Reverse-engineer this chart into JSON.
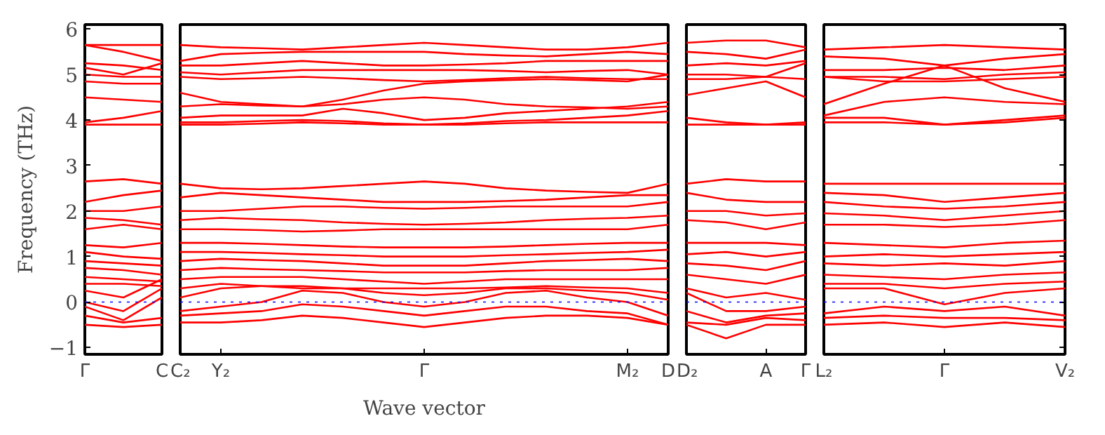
{
  "chart_data": [
    {
      "type": "line",
      "ylabel": "Frequency (THz)",
      "categories": [
        "Γ",
        null,
        "C"
      ],
      "ylim": [
        -1.15,
        6.1
      ],
      "yticks": [
        -1,
        0,
        1,
        2,
        3,
        4,
        5,
        6
      ],
      "ref_lines": [
        {
          "axis": "y",
          "value": 0,
          "color": "#0000ff",
          "line_style": "dotted"
        }
      ],
      "series": [
        {
          "color": "#ff0000",
          "values": [
            5.65,
            5.65,
            5.65
          ]
        },
        {
          "color": "#ff0000",
          "values": [
            5.65,
            5.5,
            5.3
          ]
        },
        {
          "color": "#ff0000",
          "values": [
            5.25,
            5.2,
            5.1
          ]
        },
        {
          "color": "#ff0000",
          "values": [
            5.15,
            5.0,
            5.25
          ]
        },
        {
          "color": "#ff0000",
          "values": [
            5.0,
            4.95,
            4.95
          ]
        },
        {
          "color": "#ff0000",
          "values": [
            4.85,
            4.8,
            4.8
          ]
        },
        {
          "color": "#ff0000",
          "values": [
            4.5,
            4.45,
            4.4
          ]
        },
        {
          "color": "#ff0000",
          "values": [
            3.95,
            4.05,
            4.2
          ]
        },
        {
          "color": "#ff0000",
          "values": [
            3.9,
            3.9,
            3.9
          ]
        },
        {
          "color": "#ff0000",
          "values": [
            2.65,
            2.7,
            2.6
          ]
        },
        {
          "color": "#ff0000",
          "values": [
            2.2,
            2.35,
            2.45
          ]
        },
        {
          "color": "#ff0000",
          "values": [
            2.0,
            2.0,
            2.1
          ]
        },
        {
          "color": "#ff0000",
          "values": [
            1.85,
            1.8,
            1.7
          ]
        },
        {
          "color": "#ff0000",
          "values": [
            1.6,
            1.7,
            1.6
          ]
        },
        {
          "color": "#ff0000",
          "values": [
            1.25,
            1.2,
            1.3
          ]
        },
        {
          "color": "#ff0000",
          "values": [
            1.1,
            1.0,
            0.95
          ]
        },
        {
          "color": "#ff0000",
          "values": [
            0.9,
            0.85,
            0.8
          ]
        },
        {
          "color": "#ff0000",
          "values": [
            0.75,
            0.7,
            0.6
          ]
        },
        {
          "color": "#ff0000",
          "values": [
            0.55,
            0.5,
            0.45
          ]
        },
        {
          "color": "#ff0000",
          "values": [
            0.4,
            0.4,
            0.35
          ]
        },
        {
          "color": "#ff0000",
          "values": [
            0.25,
            0.1,
            0.5
          ]
        },
        {
          "color": "#ff0000",
          "values": [
            0,
            -0.2,
            0.3
          ]
        },
        {
          "color": "#ff0000",
          "values": [
            -0.1,
            -0.4,
            0.1
          ]
        },
        {
          "color": "#ff0000",
          "values": [
            -0.3,
            -0.45,
            -0.35
          ]
        },
        {
          "color": "#ff0000",
          "values": [
            -0.5,
            -0.55,
            -0.5
          ]
        }
      ]
    },
    {
      "type": "line",
      "xlabel": "Wave vector",
      "tick_labels": "x",
      "categories": [
        "C₂",
        "Y₂",
        null,
        null,
        null,
        null,
        "Γ",
        null,
        null,
        null,
        null,
        "M₂",
        "D"
      ],
      "ylim": [
        -1.15,
        6.1
      ],
      "ref_lines": [
        {
          "axis": "y",
          "value": 0,
          "color": "#0000ff",
          "line_style": "dotted"
        }
      ],
      "series": [
        {
          "color": "#ff0000",
          "values": [
            5.65,
            5.6,
            5.58,
            5.55,
            5.6,
            5.65,
            5.7,
            5.65,
            5.6,
            5.55,
            5.55,
            5.6,
            5.7
          ]
        },
        {
          "color": "#ff0000",
          "values": [
            5.3,
            5.45,
            5.48,
            5.5,
            5.5,
            5.5,
            5.5,
            5.45,
            5.42,
            5.4,
            5.45,
            5.5,
            5.45
          ]
        },
        {
          "color": "#ff0000",
          "values": [
            5.2,
            5.2,
            5.25,
            5.3,
            5.25,
            5.2,
            5.2,
            5.22,
            5.25,
            5.3,
            5.3,
            5.3,
            5.3
          ]
        },
        {
          "color": "#ff0000",
          "values": [
            5.05,
            5.0,
            5.05,
            5.1,
            5.1,
            5.1,
            5.1,
            5.1,
            5.08,
            5.05,
            5.08,
            5.1,
            5.0
          ]
        },
        {
          "color": "#ff0000",
          "values": [
            4.95,
            4.9,
            4.92,
            4.95,
            4.92,
            4.88,
            4.85,
            4.88,
            4.92,
            4.95,
            4.92,
            4.9,
            4.9
          ]
        },
        {
          "color": "#ff0000",
          "values": [
            4.6,
            4.4,
            4.35,
            4.3,
            4.45,
            4.65,
            4.8,
            4.85,
            4.88,
            4.9,
            4.88,
            4.85,
            5.0
          ]
        },
        {
          "color": "#ff0000",
          "values": [
            4.3,
            4.35,
            4.32,
            4.3,
            4.35,
            4.45,
            4.5,
            4.45,
            4.35,
            4.3,
            4.28,
            4.25,
            4.3
          ]
        },
        {
          "color": "#ff0000",
          "values": [
            4.05,
            4.1,
            4.1,
            4.1,
            4.25,
            4.15,
            4.0,
            4.05,
            4.15,
            4.2,
            4.25,
            4.3,
            4.4
          ]
        },
        {
          "color": "#ff0000",
          "values": [
            3.95,
            3.95,
            3.98,
            4.0,
            3.98,
            3.93,
            3.9,
            3.93,
            3.98,
            4.0,
            4.05,
            4.1,
            4.2
          ]
        },
        {
          "color": "#ff0000",
          "values": [
            3.9,
            3.9,
            3.92,
            3.95,
            3.93,
            3.9,
            3.9,
            3.9,
            3.93,
            3.95,
            3.95,
            3.95,
            3.95
          ]
        },
        {
          "color": "#ff0000",
          "values": [
            2.6,
            2.5,
            2.48,
            2.5,
            2.55,
            2.6,
            2.65,
            2.6,
            2.5,
            2.45,
            2.42,
            2.4,
            2.6
          ]
        },
        {
          "color": "#ff0000",
          "values": [
            2.3,
            2.4,
            2.35,
            2.3,
            2.25,
            2.2,
            2.2,
            2.2,
            2.22,
            2.25,
            2.3,
            2.35,
            2.35
          ]
        },
        {
          "color": "#ff0000",
          "values": [
            2.0,
            2.0,
            2.05,
            2.1,
            2.1,
            2.07,
            2.05,
            2.07,
            2.1,
            2.1,
            2.1,
            2.1,
            2.2
          ]
        },
        {
          "color": "#ff0000",
          "values": [
            1.8,
            1.85,
            1.82,
            1.8,
            1.75,
            1.72,
            1.7,
            1.72,
            1.75,
            1.8,
            1.83,
            1.85,
            1.9
          ]
        },
        {
          "color": "#ff0000",
          "values": [
            1.6,
            1.6,
            1.58,
            1.55,
            1.57,
            1.6,
            1.6,
            1.6,
            1.6,
            1.6,
            1.6,
            1.6,
            1.7
          ]
        },
        {
          "color": "#ff0000",
          "values": [
            1.3,
            1.3,
            1.28,
            1.25,
            1.22,
            1.2,
            1.2,
            1.2,
            1.22,
            1.25,
            1.28,
            1.3,
            1.3
          ]
        },
        {
          "color": "#ff0000",
          "values": [
            1.1,
            1.1,
            1.08,
            1.05,
            1.03,
            1.0,
            1.0,
            1.0,
            1.03,
            1.05,
            1.08,
            1.1,
            1.15
          ]
        },
        {
          "color": "#ff0000",
          "values": [
            0.9,
            0.95,
            0.92,
            0.9,
            0.85,
            0.8,
            0.8,
            0.8,
            0.85,
            0.9,
            0.92,
            0.95,
            0.9
          ]
        },
        {
          "color": "#ff0000",
          "values": [
            0.7,
            0.75,
            0.72,
            0.7,
            0.68,
            0.65,
            0.65,
            0.65,
            0.68,
            0.7,
            0.7,
            0.7,
            0.75
          ]
        },
        {
          "color": "#ff0000",
          "values": [
            0.5,
            0.55,
            0.55,
            0.55,
            0.5,
            0.45,
            0.4,
            0.45,
            0.5,
            0.5,
            0.5,
            0.5,
            0.5
          ]
        },
        {
          "color": "#ff0000",
          "values": [
            0.3,
            0.4,
            0.35,
            0.3,
            0.3,
            0.3,
            0.3,
            0.3,
            0.32,
            0.35,
            0.32,
            0.3,
            0.2
          ]
        },
        {
          "color": "#ff0000",
          "values": [
            0.1,
            0.3,
            0.35,
            0.35,
            0.3,
            0.2,
            0.15,
            0.2,
            0.3,
            0.3,
            0.25,
            0.2,
            0.05
          ]
        },
        {
          "color": "#ff0000",
          "values": [
            -0.2,
            -0.1,
            0.0,
            0.25,
            0.2,
            0.0,
            -0.1,
            0.0,
            0.2,
            0.25,
            0.1,
            0.0,
            -0.3
          ]
        },
        {
          "color": "#ff0000",
          "values": [
            -0.3,
            -0.25,
            -0.2,
            -0.05,
            -0.1,
            -0.2,
            -0.3,
            -0.2,
            -0.1,
            -0.1,
            -0.2,
            -0.25,
            -0.5
          ]
        },
        {
          "color": "#ff0000",
          "values": [
            -0.45,
            -0.45,
            -0.4,
            -0.3,
            -0.35,
            -0.45,
            -0.55,
            -0.45,
            -0.35,
            -0.3,
            -0.3,
            -0.35,
            -0.5
          ]
        }
      ]
    },
    {
      "type": "line",
      "tick_labels": "x",
      "categories": [
        "D₂",
        null,
        "A",
        "Γ"
      ],
      "ylim": [
        -1.15,
        6.1
      ],
      "ref_lines": [
        {
          "axis": "y",
          "value": 0,
          "color": "#0000ff",
          "line_style": "dotted"
        }
      ],
      "series": [
        {
          "color": "#ff0000",
          "values": [
            5.7,
            5.75,
            5.75,
            5.6
          ]
        },
        {
          "color": "#ff0000",
          "values": [
            5.5,
            5.45,
            5.35,
            5.55
          ]
        },
        {
          "color": "#ff0000",
          "values": [
            5.2,
            5.25,
            5.2,
            5.3
          ]
        },
        {
          "color": "#ff0000",
          "values": [
            5.0,
            5.0,
            4.95,
            5.25
          ]
        },
        {
          "color": "#ff0000",
          "values": [
            4.9,
            4.9,
            4.95,
            4.9
          ]
        },
        {
          "color": "#ff0000",
          "values": [
            4.55,
            4.7,
            4.85,
            4.5
          ]
        },
        {
          "color": "#ff0000",
          "values": [
            4.05,
            3.95,
            3.9,
            3.9
          ]
        },
        {
          "color": "#ff0000",
          "values": [
            3.9,
            3.9,
            3.9,
            3.95
          ]
        },
        {
          "color": "#ff0000",
          "values": [
            2.6,
            2.7,
            2.65,
            2.65
          ]
        },
        {
          "color": "#ff0000",
          "values": [
            2.4,
            2.25,
            2.2,
            2.2
          ]
        },
        {
          "color": "#ff0000",
          "values": [
            2.0,
            2.0,
            1.9,
            1.95
          ]
        },
        {
          "color": "#ff0000",
          "values": [
            1.8,
            1.75,
            1.6,
            1.75
          ]
        },
        {
          "color": "#ff0000",
          "values": [
            1.3,
            1.3,
            1.3,
            1.25
          ]
        },
        {
          "color": "#ff0000",
          "values": [
            1.05,
            1.1,
            1.0,
            1.1
          ]
        },
        {
          "color": "#ff0000",
          "values": [
            0.85,
            0.8,
            0.7,
            0.9
          ]
        },
        {
          "color": "#ff0000",
          "values": [
            0.6,
            0.5,
            0.4,
            0.6
          ]
        },
        {
          "color": "#ff0000",
          "values": [
            0.3,
            0.1,
            0.2,
            0.05
          ]
        },
        {
          "color": "#ff0000",
          "values": [
            0.2,
            -0.2,
            -0.2,
            -0.1
          ]
        },
        {
          "color": "#ff0000",
          "values": [
            -0.2,
            -0.45,
            -0.3,
            -0.25
          ]
        },
        {
          "color": "#ff0000",
          "values": [
            -0.45,
            -0.5,
            -0.35,
            -0.4
          ]
        },
        {
          "color": "#ff0000",
          "values": [
            -0.5,
            -0.8,
            -0.5,
            -0.5
          ]
        }
      ]
    },
    {
      "type": "line",
      "tick_labels": "x",
      "categories": [
        "L₂",
        null,
        "Γ",
        null,
        "V₂"
      ],
      "ylim": [
        -1.15,
        6.1
      ],
      "yticks": [
        -1,
        0,
        1,
        2,
        3,
        4,
        5,
        6
      ],
      "ref_lines": [
        {
          "axis": "y",
          "value": 0,
          "color": "#0000ff",
          "line_style": "dotted"
        }
      ],
      "series": [
        {
          "color": "#ff0000",
          "values": [
            5.55,
            5.6,
            5.65,
            5.6,
            5.55
          ]
        },
        {
          "color": "#ff0000",
          "values": [
            5.4,
            5.35,
            5.2,
            5.35,
            5.45
          ]
        },
        {
          "color": "#ff0000",
          "values": [
            5.1,
            5.1,
            5.15,
            5.1,
            5.2
          ]
        },
        {
          "color": "#ff0000",
          "values": [
            4.95,
            4.95,
            4.9,
            5.0,
            5.05
          ]
        },
        {
          "color": "#ff0000",
          "values": [
            4.95,
            4.85,
            4.85,
            4.9,
            4.95
          ]
        },
        {
          "color": "#ff0000",
          "values": [
            4.35,
            4.8,
            5.2,
            4.7,
            4.4
          ]
        },
        {
          "color": "#ff0000",
          "values": [
            4.1,
            4.4,
            4.5,
            4.4,
            4.35
          ]
        },
        {
          "color": "#ff0000",
          "values": [
            4.05,
            4.05,
            3.9,
            4.0,
            4.1
          ]
        },
        {
          "color": "#ff0000",
          "values": [
            3.95,
            3.95,
            3.9,
            3.95,
            4.05
          ]
        },
        {
          "color": "#ff0000",
          "values": [
            2.6,
            2.6,
            2.6,
            2.6,
            2.6
          ]
        },
        {
          "color": "#ff0000",
          "values": [
            2.4,
            2.35,
            2.2,
            2.3,
            2.4
          ]
        },
        {
          "color": "#ff0000",
          "values": [
            2.2,
            2.1,
            2.05,
            2.1,
            2.2
          ]
        },
        {
          "color": "#ff0000",
          "values": [
            1.95,
            1.9,
            1.8,
            1.9,
            2.0
          ]
        },
        {
          "color": "#ff0000",
          "values": [
            1.7,
            1.7,
            1.65,
            1.7,
            1.8
          ]
        },
        {
          "color": "#ff0000",
          "values": [
            1.3,
            1.25,
            1.2,
            1.3,
            1.35
          ]
        },
        {
          "color": "#ff0000",
          "values": [
            1.0,
            1.05,
            1.0,
            1.05,
            1.1
          ]
        },
        {
          "color": "#ff0000",
          "values": [
            0.85,
            0.8,
            0.85,
            0.8,
            0.9
          ]
        },
        {
          "color": "#ff0000",
          "values": [
            0.6,
            0.55,
            0.5,
            0.6,
            0.65
          ]
        },
        {
          "color": "#ff0000",
          "values": [
            0.4,
            0.4,
            0.3,
            0.4,
            0.45
          ]
        },
        {
          "color": "#ff0000",
          "values": [
            0.3,
            0.3,
            -0.05,
            0.2,
            0.3
          ]
        },
        {
          "color": "#ff0000",
          "values": [
            -0.25,
            -0.1,
            -0.2,
            -0.1,
            -0.3
          ]
        },
        {
          "color": "#ff0000",
          "values": [
            -0.35,
            -0.3,
            -0.35,
            -0.35,
            -0.4
          ]
        },
        {
          "color": "#ff0000",
          "values": [
            -0.5,
            -0.45,
            -0.55,
            -0.45,
            -0.55
          ]
        }
      ]
    }
  ]
}
